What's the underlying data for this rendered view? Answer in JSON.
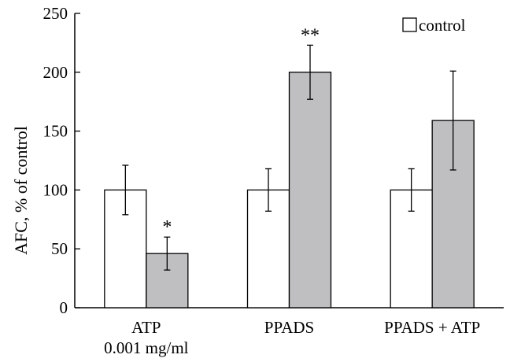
{
  "chart_data": {
    "type": "bar",
    "ylabel": "AFC, % of control",
    "ylim": [
      0,
      250
    ],
    "yticks": [
      0,
      50,
      100,
      150,
      200,
      250
    ],
    "categories": [
      [
        "ATP",
        "0.001 mg/ml"
      ],
      [
        "PPADS"
      ],
      [
        "PPADS + ATP"
      ]
    ],
    "series": [
      {
        "name": "control",
        "color": "#ffffff",
        "values": [
          100,
          100,
          100
        ],
        "errors": [
          21,
          18,
          18
        ]
      },
      {
        "color": "#bfbfc1",
        "values": [
          46,
          200,
          159
        ],
        "errors": [
          14,
          23,
          42
        ]
      }
    ],
    "annotations": [
      "*",
      "**",
      ""
    ],
    "legend": {
      "position": "top-right"
    },
    "grid": false
  }
}
